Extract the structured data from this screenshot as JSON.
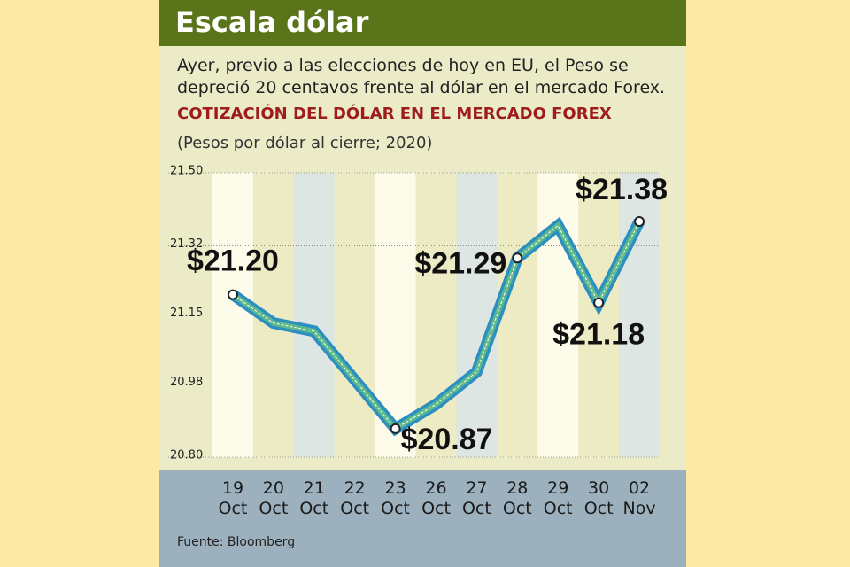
{
  "header": {
    "title": "Escala dólar"
  },
  "description": "Ayer, previo a las elecciones de hoy en EU, el Peso se depreció 20 centavos frente al dólar en el mercado Forex.",
  "chart_data": {
    "type": "line",
    "title": "COTIZACIÓN DEL DÓLAR EN EL MERCADO FOREX",
    "subtitle": "(Pesos por dólar al cierre; 2020)",
    "categories": [
      "19 Oct",
      "20 Oct",
      "21 Oct",
      "22 Oct",
      "23 Oct",
      "26 Oct",
      "27 Oct",
      "28 Oct",
      "29 Oct",
      "30 Oct",
      "02 Nov"
    ],
    "series": [
      {
        "color": "#2b8fc2",
        "values": [
          21.2,
          21.13,
          21.11,
          20.99,
          20.87,
          20.93,
          21.01,
          21.29,
          21.37,
          21.18,
          21.38
        ],
        "value_labels": [
          "$21.20",
          null,
          null,
          null,
          "$20.87",
          null,
          null,
          "$21.29",
          null,
          "$21.18",
          "$21.38"
        ]
      }
    ],
    "ylim": [
      20.8,
      21.5
    ],
    "yticks": [
      {
        "value": 20.8,
        "label": "20.80"
      },
      20.98,
      21.15,
      21.32,
      {
        "value": 21.5,
        "label": "21.50"
      }
    ],
    "source": "Fuente: Bloomberg"
  }
}
